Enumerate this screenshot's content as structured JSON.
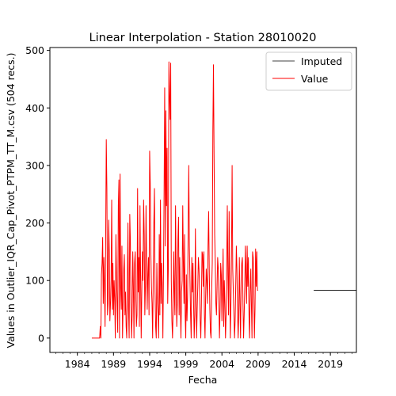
{
  "chart_data": {
    "type": "line",
    "title": "Linear Interpolation - Station 28010020",
    "xlabel": "Fecha",
    "ylabel": "Values in Outlier_IQR_Cap_Pivot_PTPM_TT_M.csv (504 recs.)",
    "xlim": [
      1980.2,
      2022.6
    ],
    "ylim": [
      -25,
      505
    ],
    "xticks": [
      1984,
      1989,
      1994,
      1999,
      2004,
      2009,
      2014,
      2019
    ],
    "yticks": [
      0,
      100,
      200,
      300,
      400,
      500
    ],
    "minor_xticks_per_year": true,
    "grid": false,
    "legend": {
      "position": "top-right",
      "entries": [
        "Imputed",
        "Value"
      ]
    },
    "series": [
      {
        "name": "Imputed",
        "color": "#000000",
        "segments": [
          {
            "x": [
              2016.7,
              2022.6
            ],
            "y": [
              83,
              83
            ]
          }
        ]
      },
      {
        "name": "Value",
        "color": "#ff0000",
        "x_start": 1986.0,
        "x_step": 0.0833,
        "values": [
          0,
          0,
          0,
          0,
          0,
          0,
          0,
          0,
          0,
          0,
          0,
          0,
          0,
          0,
          20,
          0,
          110,
          130,
          175,
          60,
          140,
          90,
          20,
          170,
          345,
          260,
          40,
          60,
          205,
          150,
          30,
          60,
          100,
          240,
          50,
          130,
          40,
          100,
          70,
          0,
          180,
          110,
          60,
          10,
          230,
          275,
          0,
          285,
          90,
          50,
          160,
          0,
          60,
          120,
          145,
          40,
          80,
          20,
          0,
          90,
          200,
          50,
          0,
          215,
          170,
          60,
          0,
          40,
          150,
          90,
          0,
          130,
          150,
          70,
          20,
          40,
          260,
          80,
          140,
          20,
          230,
          110,
          0,
          80,
          150,
          100,
          240,
          180,
          40,
          90,
          230,
          130,
          50,
          110,
          140,
          40,
          325,
          270,
          150,
          90,
          60,
          0,
          110,
          200,
          260,
          80,
          20,
          0,
          130,
          60,
          40,
          0,
          180,
          40,
          240,
          60,
          130,
          90,
          0,
          110,
          250,
          435,
          160,
          395,
          230,
          330,
          60,
          120,
          480,
          420,
          380,
          478,
          100,
          30,
          0,
          50,
          150,
          80,
          40,
          230,
          120,
          20,
          60,
          170,
          210,
          40,
          140,
          60,
          0,
          80,
          100,
          230,
          130,
          60,
          180,
          40,
          0,
          110,
          30,
          70,
          190,
          300,
          160,
          100,
          40,
          0,
          140,
          80,
          130,
          60,
          0,
          40,
          190,
          70,
          0,
          50,
          90,
          140,
          120,
          80,
          30,
          0,
          60,
          150,
          145,
          90,
          150,
          40,
          0,
          70,
          120,
          100,
          60,
          160,
          220,
          120,
          50,
          10,
          0,
          80,
          130,
          360,
          475,
          320,
          180,
          130,
          60,
          40,
          90,
          140,
          120,
          60,
          0,
          50,
          130,
          110,
          30,
          90,
          155,
          20,
          100,
          60,
          0,
          40,
          130,
          230,
          110,
          40,
          220,
          90,
          0,
          60,
          150,
          300,
          120,
          80,
          40,
          0,
          30,
          90,
          160,
          120,
          50,
          0,
          40,
          140,
          60,
          0,
          100,
          130,
          140,
          60,
          0,
          40,
          90,
          160,
          110,
          60,
          160,
          90,
          140,
          40,
          0,
          80,
          120,
          60,
          0,
          150,
          140,
          80,
          0,
          50,
          155,
          90,
          150,
          83,
          83
        ]
      }
    ]
  }
}
